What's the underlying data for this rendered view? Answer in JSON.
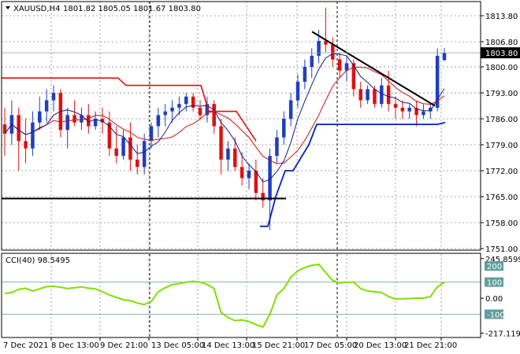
{
  "header": {
    "symbol": "XAUUSD,H4",
    "ohlc": "1801.82 1805.05 1801.67 1803.80",
    "arrow_icon": "triangle-down-icon"
  },
  "indicator": {
    "label": "CCI(40) 98.5495"
  },
  "price_axis": {
    "ticks": [
      "1813.80",
      "1806.80",
      "1800.00",
      "1793.00",
      "1786.00",
      "1779.00",
      "1772.00",
      "1765.00",
      "1758.00",
      "1751.00"
    ],
    "current": "1803.80"
  },
  "cci_axis": {
    "ticks": [
      "245.8599",
      "200",
      "100",
      "0.00",
      "-100",
      "-217.1196"
    ]
  },
  "time_axis": {
    "ticks": [
      "7 Dec 2021",
      "8 Dec 13:00",
      "9 Dec 21:00",
      "13 Dec 05:00",
      "14 Dec 13:00",
      "15 Dec 21:00",
      "17 Dec 05:00",
      "20 Dec 13:00",
      "21 Dec 21:00"
    ]
  },
  "colors": {
    "bull": "#1f3fbf",
    "bear": "#e01010",
    "ma_fast": "#1a1a8c",
    "ma_slow": "#d01010",
    "sar": "#e01010",
    "trail_blue": "#0020c0",
    "cci": "#7fe000",
    "trendline": "#000000",
    "grid": "#8c8c8c",
    "level_line": "#5f9ea0"
  },
  "chart_data": {
    "type": "candlestick",
    "symbol": "XAUUSD",
    "timeframe": "H4",
    "ylim": [
      1751,
      1818
    ],
    "candles": [
      [
        1784.5,
        1789,
        1776,
        1782
      ],
      [
        1782,
        1791,
        1779,
        1787
      ],
      [
        1787,
        1789,
        1772,
        1780
      ],
      [
        1780,
        1786,
        1774,
        1778
      ],
      [
        1778,
        1788,
        1776,
        1785
      ],
      [
        1785,
        1792,
        1783,
        1788
      ],
      [
        1788,
        1794,
        1785,
        1791
      ],
      [
        1791,
        1795,
        1788,
        1793
      ],
      [
        1793,
        1794,
        1781,
        1783
      ],
      [
        1783,
        1789,
        1778,
        1787
      ],
      [
        1787,
        1791,
        1784,
        1785
      ],
      [
        1785,
        1789,
        1783,
        1787
      ],
      [
        1787,
        1790,
        1782,
        1784
      ],
      [
        1784,
        1788,
        1783,
        1786
      ],
      [
        1786,
        1789,
        1782,
        1785
      ],
      [
        1785,
        1788,
        1776,
        1778
      ],
      [
        1778,
        1784,
        1774,
        1776
      ],
      [
        1776,
        1783,
        1775,
        1781
      ],
      [
        1781,
        1785,
        1772,
        1775
      ],
      [
        1775,
        1779,
        1771,
        1773
      ],
      [
        1773,
        1782,
        1771,
        1780
      ],
      [
        1780,
        1785,
        1778,
        1784
      ],
      [
        1784,
        1789,
        1781,
        1787
      ],
      [
        1787,
        1790,
        1784,
        1788
      ],
      [
        1788,
        1791,
        1785,
        1789
      ],
      [
        1789,
        1792,
        1787,
        1790
      ],
      [
        1790,
        1793,
        1788,
        1792
      ],
      [
        1792,
        1793,
        1788,
        1789
      ],
      [
        1789,
        1791,
        1786,
        1787
      ],
      [
        1787,
        1792,
        1785,
        1790
      ],
      [
        1790,
        1791,
        1782,
        1784
      ],
      [
        1784,
        1786,
        1771,
        1775
      ],
      [
        1775,
        1780,
        1772,
        1778
      ],
      [
        1778,
        1781,
        1772,
        1773
      ],
      [
        1773,
        1777,
        1768,
        1770
      ],
      [
        1770,
        1774,
        1767,
        1772
      ],
      [
        1772,
        1775,
        1764,
        1766
      ],
      [
        1766,
        1770,
        1762,
        1764
      ],
      [
        1764,
        1778,
        1756,
        1776
      ],
      [
        1776,
        1783,
        1774,
        1781
      ],
      [
        1781,
        1788,
        1779,
        1786
      ],
      [
        1786,
        1793,
        1784,
        1791
      ],
      [
        1791,
        1798,
        1789,
        1796
      ],
      [
        1796,
        1802,
        1794,
        1800
      ],
      [
        1800,
        1805,
        1797,
        1803
      ],
      [
        1803,
        1810,
        1801,
        1807
      ],
      [
        1807,
        1816,
        1804,
        1806
      ],
      [
        1806,
        1808,
        1800,
        1802
      ],
      [
        1802,
        1804,
        1797,
        1799
      ],
      [
        1799,
        1803,
        1796,
        1801
      ],
      [
        1801,
        1802,
        1792,
        1794
      ],
      [
        1794,
        1796,
        1789,
        1791
      ],
      [
        1791,
        1795,
        1790,
        1794
      ],
      [
        1794,
        1795,
        1789,
        1790
      ],
      [
        1790,
        1797,
        1789,
        1795
      ],
      [
        1795,
        1799,
        1788,
        1790
      ],
      [
        1790,
        1792,
        1786,
        1789
      ],
      [
        1789,
        1791,
        1786,
        1788
      ],
      [
        1788,
        1790,
        1786,
        1789
      ],
      [
        1789,
        1791,
        1784,
        1787
      ],
      [
        1787,
        1790,
        1786,
        1788
      ],
      [
        1788,
        1790,
        1786,
        1789
      ],
      [
        1789,
        1805,
        1788,
        1803
      ],
      [
        1801.82,
        1805.05,
        1801.67,
        1803.8
      ]
    ],
    "cci": [
      30,
      35,
      55,
      62,
      45,
      58,
      72,
      75,
      68,
      60,
      65,
      70,
      62,
      58,
      40,
      20,
      5,
      -10,
      -15,
      -30,
      -40,
      -20,
      40,
      65,
      85,
      90,
      100,
      105,
      100,
      85,
      60,
      -90,
      -120,
      -140,
      -135,
      -145,
      -165,
      -180,
      -100,
      20,
      60,
      130,
      170,
      190,
      205,
      210,
      160,
      110,
      95,
      100,
      100,
      60,
      45,
      40,
      35,
      10,
      -5,
      -3,
      -2,
      0,
      0,
      10,
      70,
      98.5
    ],
    "cci_ylim": [
      -225,
      245
    ],
    "cci_levels": [
      100,
      -100
    ]
  }
}
